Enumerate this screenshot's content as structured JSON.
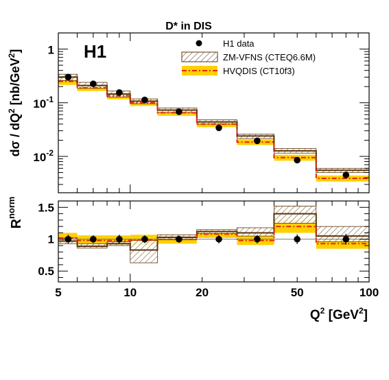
{
  "chart_data": {
    "type": "line",
    "title": "D* in DIS",
    "experiment_label": "H1",
    "xlabel": "Q",
    "xlabel_sup": "2",
    "xlabel_units": "[GeV",
    "xlabel_units_sup": "2",
    "xlabel_close": "]",
    "xscale": "log",
    "xlim": [
      5,
      100
    ],
    "x_tick_labels": [
      "5",
      "10",
      "20",
      "50",
      "100"
    ],
    "x_bin_edges": [
      5,
      6,
      8,
      10,
      13,
      19,
      28,
      40,
      60,
      100
    ],
    "x_centers": [
      5.5,
      7,
      9,
      11.5,
      16,
      23.5,
      34,
      50,
      80
    ],
    "legend_placement": "top-right",
    "legend": [
      {
        "label": "H1 data",
        "style": "marker"
      },
      {
        "label": "ZM-VFNS (CTEQ6.6M)",
        "style": "hatched-band"
      },
      {
        "label": "HVQDIS (CT10f3)",
        "style": "dashdot-band"
      }
    ],
    "colors": {
      "data": "#000000",
      "zmvfns": "#5a3208",
      "hvqdis_line": "#e8220e",
      "hvqdis_band": "#ffd000"
    },
    "panels": [
      {
        "name": "cross-section",
        "ylabel": "dσ / dQ",
        "ylabel_sup": "2",
        "ylabel_units": "[nb/GeV",
        "ylabel_units_sup": "2",
        "ylabel_close": "]",
        "yscale": "log",
        "ylim": [
          0.0021,
          2.0
        ],
        "y_tick_labels": [
          {
            "value": 1,
            "base": "1",
            "exp": ""
          },
          {
            "value": 0.1,
            "base": "10",
            "exp": "-1"
          },
          {
            "value": 0.01,
            "base": "10",
            "exp": "-2"
          }
        ],
        "series": [
          {
            "name": "H1 data",
            "type": "points",
            "values": [
              0.3,
              0.225,
              0.155,
              0.113,
              0.068,
              0.034,
              0.0195,
              0.0085,
              0.0045
            ]
          },
          {
            "name": "ZM-VFNS (CTEQ6.6M)",
            "type": "band",
            "values": [
              0.3,
              0.21,
              0.145,
              0.107,
              0.073,
              0.044,
              0.024,
              0.0127,
              0.0055
            ],
            "lower": [
              0.26,
              0.185,
              0.128,
              0.096,
              0.066,
              0.04,
              0.0215,
              0.0115,
              0.005
            ],
            "upper": [
              0.34,
              0.24,
              0.165,
              0.118,
              0.08,
              0.048,
              0.026,
              0.014,
              0.006
            ]
          },
          {
            "name": "HVQDIS (CT10f3)",
            "type": "band",
            "values": [
              0.25,
              0.19,
              0.135,
              0.1,
              0.065,
              0.04,
              0.0185,
              0.0095,
              0.0039
            ],
            "lower": [
              0.215,
              0.165,
              0.116,
              0.087,
              0.057,
              0.035,
              0.0163,
              0.0083,
              0.0034
            ],
            "upper": [
              0.285,
              0.215,
              0.155,
              0.115,
              0.074,
              0.045,
              0.0207,
              0.0107,
              0.0044
            ]
          }
        ]
      },
      {
        "name": "ratio",
        "ylabel": "R",
        "ylabel_sup": "norm",
        "yscale": "linear",
        "ylim": [
          0.33,
          1.6
        ],
        "y_tick_labels": [
          {
            "value": 0.5,
            "base": "0.5",
            "exp": ""
          },
          {
            "value": 1,
            "base": "1",
            "exp": ""
          },
          {
            "value": 1.5,
            "base": "1.5",
            "exp": ""
          }
        ],
        "reference_line": 1,
        "series": [
          {
            "name": "H1 data",
            "type": "points",
            "values": [
              1.0,
              1.0,
              1.0,
              1.0,
              1.0,
              1.0,
              1.0,
              1.0,
              1.0
            ],
            "errors": [
              0.07,
              0.06,
              0.07,
              0.06,
              0.055,
              0.065,
              0.065,
              0.075,
              0.085
            ]
          },
          {
            "name": "ZM-VFNS (CTEQ6.6M)",
            "type": "band",
            "values": [
              0.97,
              0.89,
              0.93,
              0.83,
              1.03,
              1.12,
              1.1,
              1.4,
              1.05
            ],
            "lower": [
              0.93,
              0.86,
              0.9,
              0.63,
              0.99,
              1.09,
              1.05,
              1.25,
              0.96
            ],
            "upper": [
              1.02,
              0.93,
              0.96,
              0.98,
              1.07,
              1.15,
              1.18,
              1.52,
              1.2
            ]
          },
          {
            "name": "HVQDIS (CT10f3)",
            "type": "band",
            "values": [
              1.02,
              0.98,
              0.98,
              0.99,
              1.0,
              1.08,
              0.98,
              1.2,
              0.93
            ],
            "lower": [
              0.94,
              0.9,
              0.9,
              0.91,
              0.93,
              1.02,
              0.91,
              1.1,
              0.85
            ],
            "upper": [
              1.1,
              1.06,
              1.06,
              1.07,
              1.07,
              1.14,
              1.05,
              1.3,
              1.01
            ]
          }
        ]
      }
    ]
  }
}
